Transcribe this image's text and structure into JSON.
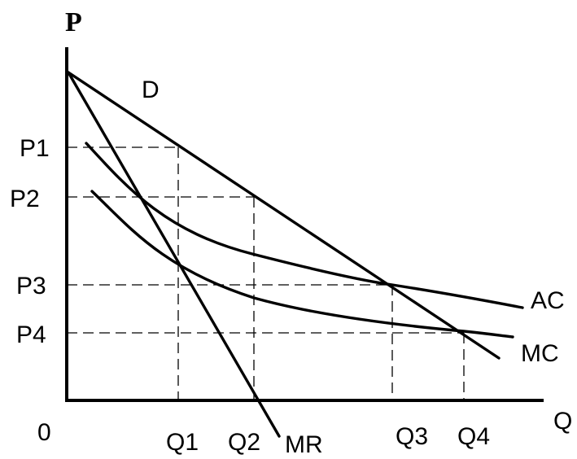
{
  "axes": {
    "y_label": "P",
    "x_label": "Q",
    "origin_label": "0"
  },
  "price_labels": [
    "P1",
    "P2",
    "P3",
    "P4"
  ],
  "quantity_labels": [
    "Q1",
    "Q2",
    "Q3",
    "Q4"
  ],
  "curve_labels": {
    "demand": "D",
    "marginal_revenue": "MR",
    "average_cost": "AC",
    "marginal_cost": "MC"
  }
}
